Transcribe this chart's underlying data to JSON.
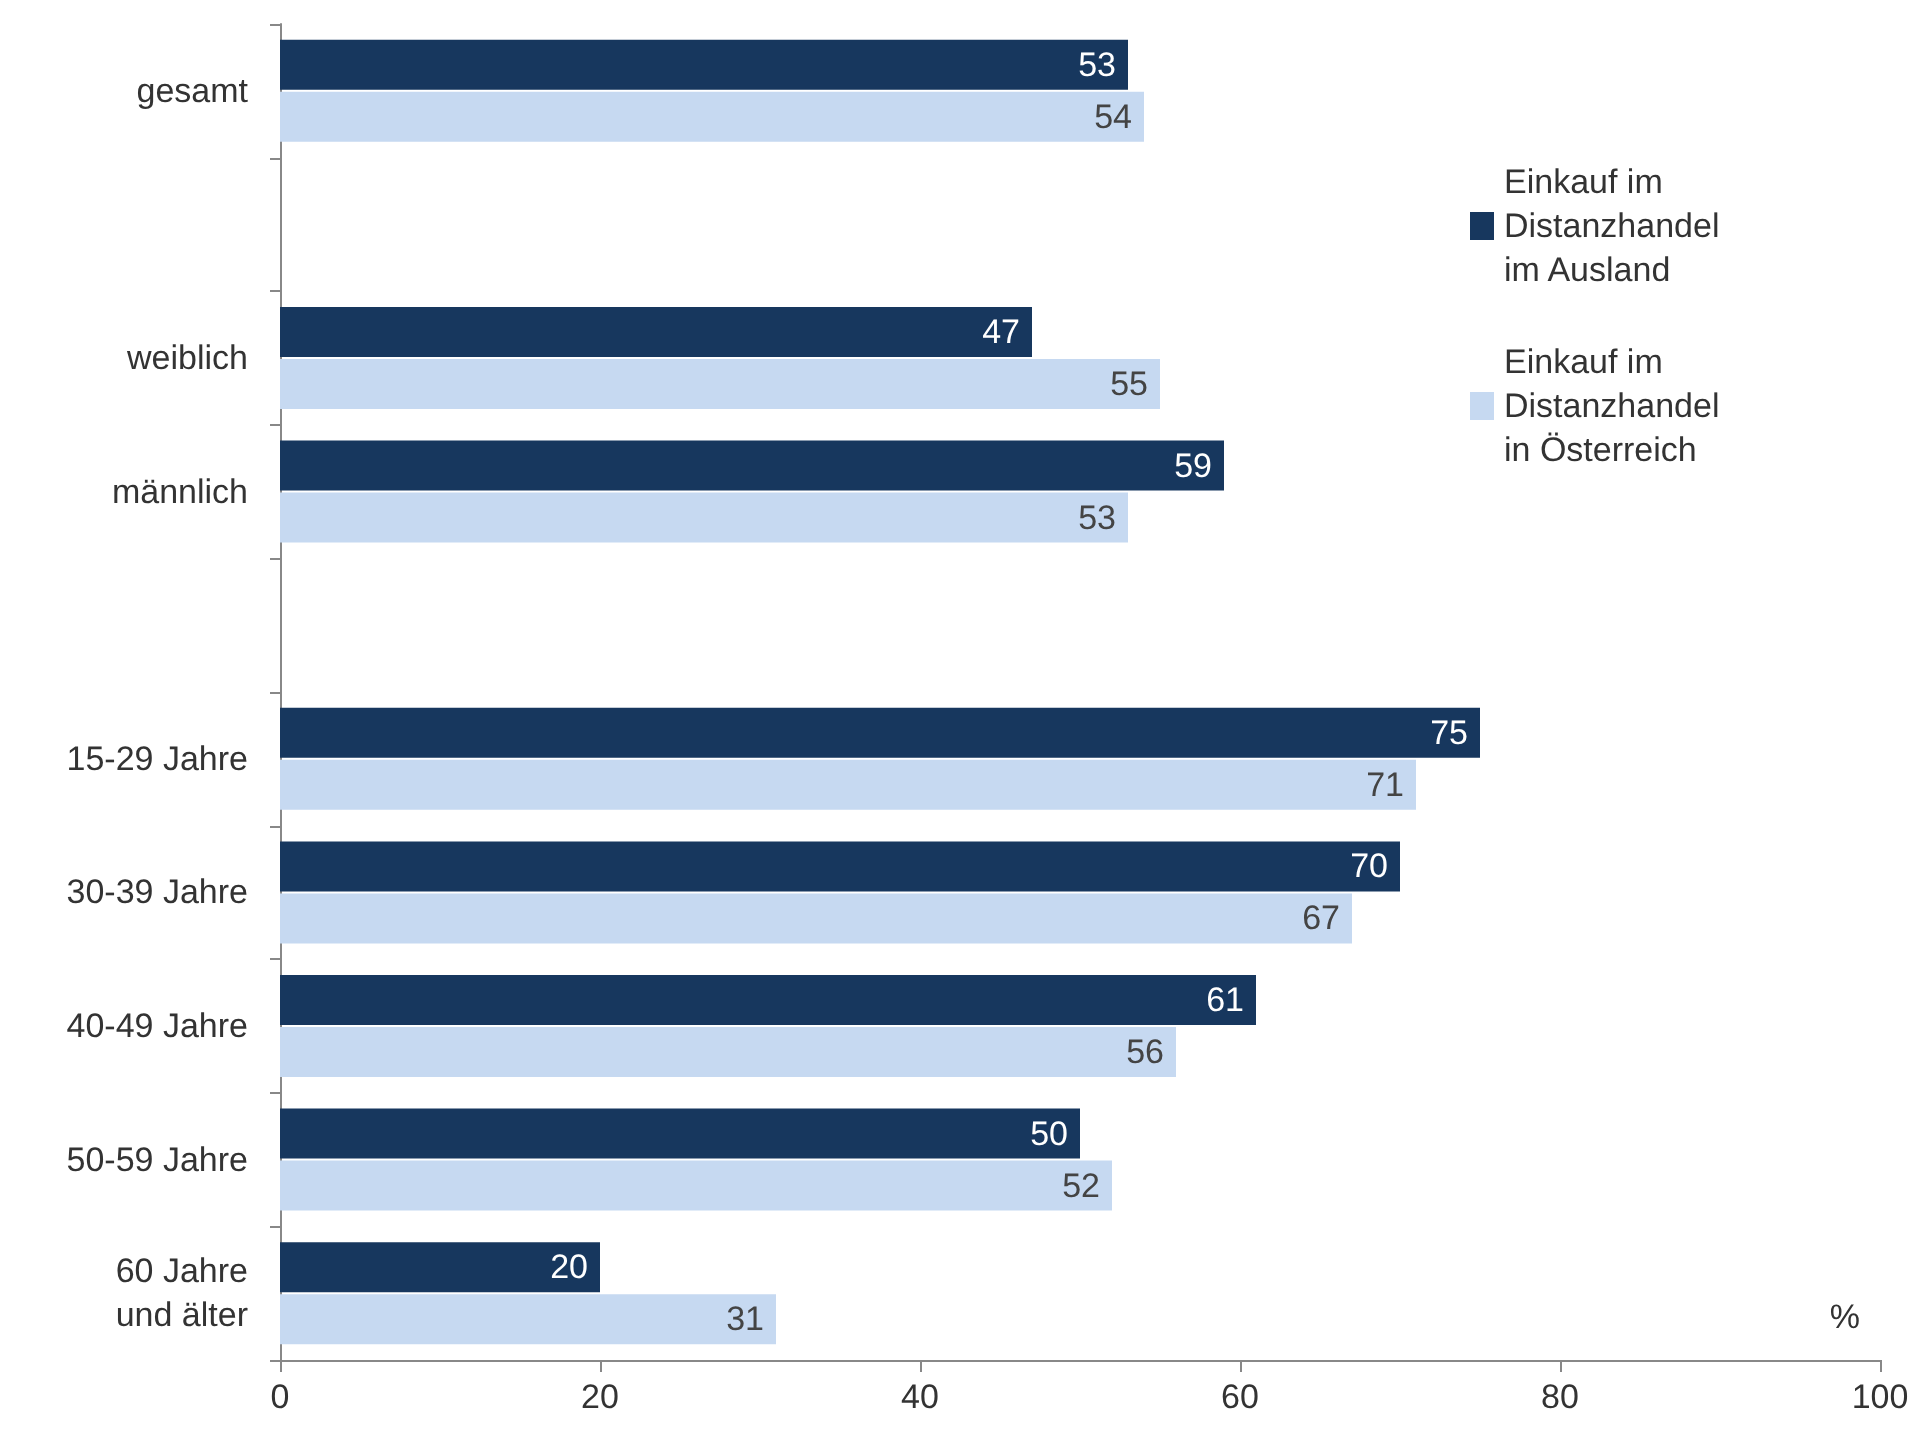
{
  "chart_data": {
    "type": "bar",
    "orientation": "horizontal",
    "categories": [
      "gesamt",
      null,
      "weiblich",
      "männlich",
      null,
      "15-29 Jahre",
      "30-39 Jahre",
      "40-49 Jahre",
      "50-59 Jahre",
      "60 Jahre\nund älter"
    ],
    "series": [
      {
        "name": "Einkauf im Distanzhandel im Ausland",
        "color": "#17375e",
        "values": [
          53,
          null,
          47,
          59,
          null,
          75,
          70,
          61,
          50,
          20
        ]
      },
      {
        "name": "Einkauf im Distanzhandel in Österreich",
        "color": "#c6d9f1",
        "values": [
          54,
          null,
          55,
          53,
          null,
          71,
          67,
          56,
          52,
          31
        ]
      }
    ],
    "xlim": [
      0,
      100
    ],
    "xticks": [
      0,
      20,
      40,
      60,
      80,
      100
    ],
    "grid": false,
    "legend": "top right",
    "data_labels": true,
    "annotations": [
      "%"
    ]
  }
}
